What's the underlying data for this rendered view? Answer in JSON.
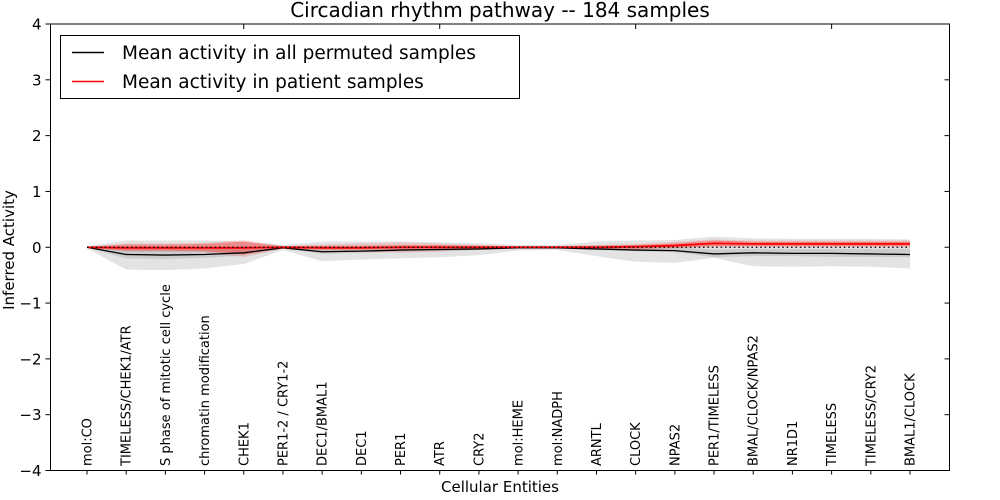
{
  "chart_data": {
    "type": "line",
    "title": "Circadian rhythm pathway -- 184 samples",
    "xlabel": "Cellular Entities",
    "ylabel": "Inferred Activity",
    "ylim": [
      -4,
      4
    ],
    "ytick_values": [
      4,
      3,
      2,
      1,
      0,
      -1,
      -2,
      -3,
      -4
    ],
    "ytick_labels": [
      "4",
      "3",
      "2",
      "1",
      "0",
      "−1",
      "−2",
      "−3",
      "−4"
    ],
    "grid": false,
    "legend_position": "upper left",
    "categories": [
      "mol:CO",
      "TIMELESS/CHEK1/ATR",
      "S phase of mitotic cell cycle",
      "chromatin modification",
      "CHEK1",
      "PER1-2 / CRY1-2",
      "DEC1/BMAL1",
      "DEC1",
      "PER1",
      "ATR",
      "CRY2",
      "mol:HEME",
      "mol:NADPH",
      "ARNTL",
      "CLOCK",
      "NPAS2",
      "PER1/TIMELESS",
      "BMAL/CLOCK/NPAS2",
      "NR1D1",
      "TIMELESS",
      "TIMELESS/CRY2",
      "BMAL1/CLOCK"
    ],
    "series": [
      {
        "name": "Mean activity in all permuted samples",
        "color": "#000000",
        "width": 1.3,
        "values": [
          0.0,
          -0.13,
          -0.14,
          -0.13,
          -0.1,
          -0.01,
          -0.08,
          -0.07,
          -0.05,
          -0.04,
          -0.03,
          -0.01,
          -0.01,
          -0.03,
          -0.05,
          -0.06,
          -0.12,
          -0.1,
          -0.11,
          -0.11,
          -0.12,
          -0.13
        ]
      },
      {
        "name": "Mean activity in patient samples",
        "color": "#ff0000",
        "width": 1.8,
        "values": [
          0.0,
          -0.01,
          -0.01,
          -0.01,
          -0.01,
          0.0,
          -0.01,
          -0.01,
          0.0,
          0.0,
          0.0,
          0.0,
          0.0,
          0.0,
          0.01,
          0.03,
          0.07,
          0.06,
          0.06,
          0.06,
          0.06,
          0.06
        ]
      }
    ],
    "bands": [
      {
        "name": "permuted-band-outer",
        "color": "rgba(0,0,0,0.11)",
        "lo": [
          -0.02,
          -0.4,
          -0.41,
          -0.38,
          -0.3,
          -0.05,
          -0.25,
          -0.22,
          -0.2,
          -0.18,
          -0.14,
          -0.06,
          -0.05,
          -0.16,
          -0.26,
          -0.28,
          -0.19,
          -0.34,
          -0.35,
          -0.34,
          -0.35,
          -0.38
        ],
        "hi": [
          0.02,
          0.12,
          0.12,
          0.12,
          0.11,
          0.04,
          0.1,
          0.1,
          0.1,
          0.09,
          0.07,
          0.04,
          0.04,
          0.1,
          0.12,
          0.13,
          0.19,
          0.16,
          0.15,
          0.15,
          0.15,
          0.14
        ]
      },
      {
        "name": "permuted-band-inner",
        "color": "rgba(0,0,0,0.10)",
        "lo": [
          -0.01,
          -0.2,
          -0.21,
          -0.19,
          -0.15,
          -0.02,
          -0.12,
          -0.1,
          -0.08,
          -0.07,
          -0.05,
          -0.02,
          -0.02,
          -0.05,
          -0.07,
          -0.09,
          -0.18,
          -0.16,
          -0.16,
          -0.17,
          -0.17,
          -0.18
        ],
        "hi": [
          0.01,
          -0.02,
          -0.02,
          -0.02,
          -0.01,
          0.0,
          -0.01,
          -0.01,
          0.0,
          0.0,
          0.0,
          0.0,
          0.0,
          0.0,
          0.0,
          0.0,
          -0.04,
          -0.03,
          -0.03,
          -0.03,
          -0.03,
          -0.03
        ]
      },
      {
        "name": "patient-band-outer",
        "color": "rgba(255,0,0,0.12)",
        "lo": [
          -0.01,
          -0.08,
          -0.08,
          -0.09,
          -0.18,
          -0.03,
          -0.06,
          -0.08,
          -0.1,
          -0.08,
          -0.04,
          -0.02,
          -0.02,
          -0.03,
          -0.04,
          -0.02,
          0.0,
          0.0,
          0.0,
          0.0,
          0.0,
          0.0
        ],
        "hi": [
          0.01,
          0.07,
          0.07,
          0.08,
          0.13,
          0.02,
          0.05,
          0.07,
          0.09,
          0.07,
          0.04,
          0.02,
          0.02,
          0.04,
          0.06,
          0.1,
          0.14,
          0.12,
          0.12,
          0.12,
          0.12,
          0.12
        ]
      },
      {
        "name": "patient-band-inner",
        "color": "rgba(255,0,0,0.30)",
        "lo": [
          -0.01,
          -0.06,
          -0.06,
          -0.07,
          -0.13,
          -0.02,
          -0.04,
          -0.04,
          -0.04,
          -0.04,
          -0.03,
          -0.02,
          -0.02,
          -0.02,
          -0.03,
          -0.01,
          0.02,
          0.02,
          0.02,
          0.02,
          0.02,
          0.02
        ],
        "hi": [
          0.01,
          0.05,
          0.05,
          0.06,
          0.1,
          0.02,
          0.03,
          0.03,
          0.04,
          0.04,
          0.03,
          0.02,
          0.02,
          0.03,
          0.04,
          0.07,
          0.12,
          0.1,
          0.1,
          0.1,
          0.1,
          0.1
        ]
      }
    ],
    "zero_line": {
      "style": "dotted",
      "color": "#000000",
      "y": 0
    },
    "top_tick_indices": [
      4,
      9,
      14,
      19
    ]
  }
}
